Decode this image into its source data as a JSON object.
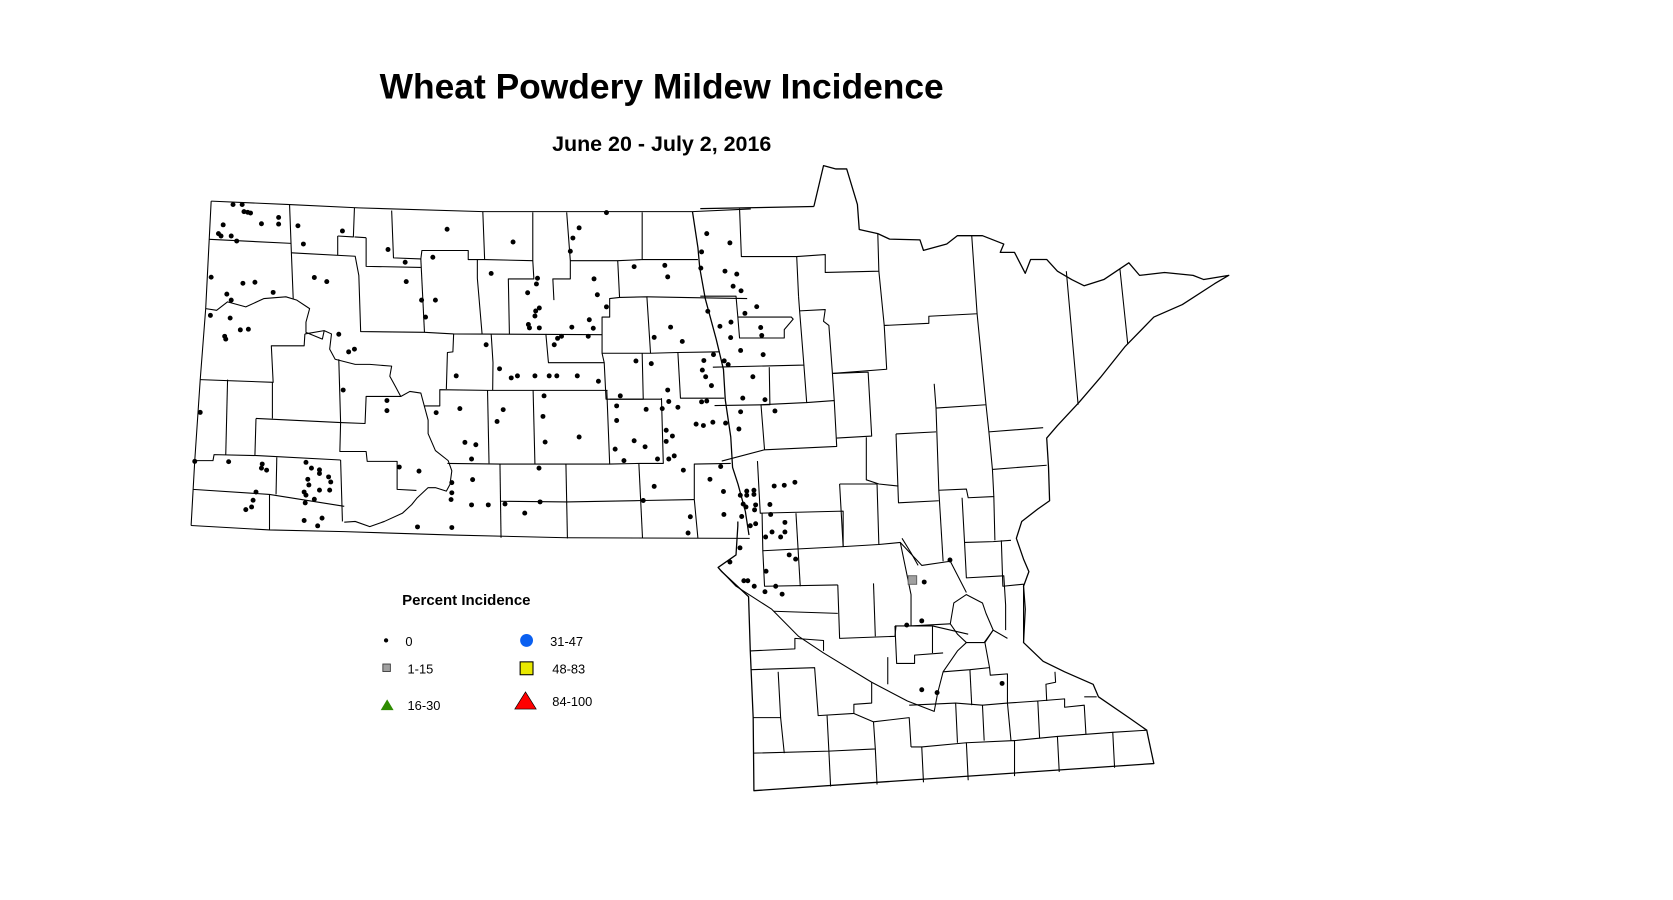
{
  "title": "Wheat Powdery Mildew Incidence",
  "subtitle": "June 20 - July 2, 2016",
  "legend": {
    "title": "Percent Incidence",
    "items": [
      {
        "label": "0",
        "symbol": "dot",
        "color": "#000000"
      },
      {
        "label": "1-15",
        "symbol": "square",
        "color": "#a0a0a0"
      },
      {
        "label": "16-30",
        "symbol": "triangle",
        "color": "#2e8b00"
      },
      {
        "label": "31-47",
        "symbol": "circle",
        "color": "#0a5ff0"
      },
      {
        "label": "48-83",
        "symbol": "square",
        "color": "#e8e800"
      },
      {
        "label": "84-100",
        "symbol": "triangle",
        "color": "#ff0000"
      }
    ]
  },
  "regions": [
    "North Dakota",
    "Minnesota"
  ]
}
